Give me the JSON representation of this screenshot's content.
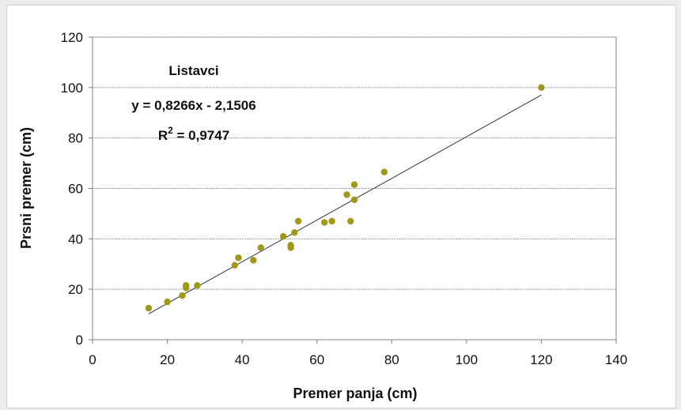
{
  "chart_data": {
    "type": "scatter",
    "title": "",
    "xlabel": "Premer panja (cm)",
    "ylabel": "Prsni premer (cm)",
    "xlim": [
      0,
      140
    ],
    "ylim": [
      0,
      120
    ],
    "xticks": [
      0,
      20,
      40,
      60,
      80,
      100,
      120,
      140
    ],
    "yticks": [
      0,
      20,
      40,
      60,
      80,
      100,
      120
    ],
    "grid": "horizontal",
    "annotations": {
      "group": "Listavci",
      "equation": "y = 0,8266x - 2,1506",
      "r2_prefix": "R",
      "r2_sup": "2",
      "r2_value": " = 0,9747"
    },
    "series": [
      {
        "marker_color": "#a09818",
        "points": [
          [
            15,
            12.5
          ],
          [
            20,
            15
          ],
          [
            24,
            17.5
          ],
          [
            25,
            20.5
          ],
          [
            25,
            21.5
          ],
          [
            28,
            21.5
          ],
          [
            38,
            29.5
          ],
          [
            39,
            32.5
          ],
          [
            43,
            31.5
          ],
          [
            45,
            36.5
          ],
          [
            51,
            41
          ],
          [
            53,
            36.5
          ],
          [
            53,
            37.5
          ],
          [
            54,
            42.5
          ],
          [
            55,
            47
          ],
          [
            62,
            46.5
          ],
          [
            64,
            47
          ],
          [
            68,
            57.5
          ],
          [
            69,
            47
          ],
          [
            70,
            55.5
          ],
          [
            70,
            61.5
          ],
          [
            78,
            66.5
          ],
          [
            120,
            100
          ]
        ]
      }
    ],
    "trendline": {
      "slope": 0.8266,
      "intercept": -2.1506,
      "x_range": [
        15,
        120
      ],
      "color": "#333333"
    }
  }
}
